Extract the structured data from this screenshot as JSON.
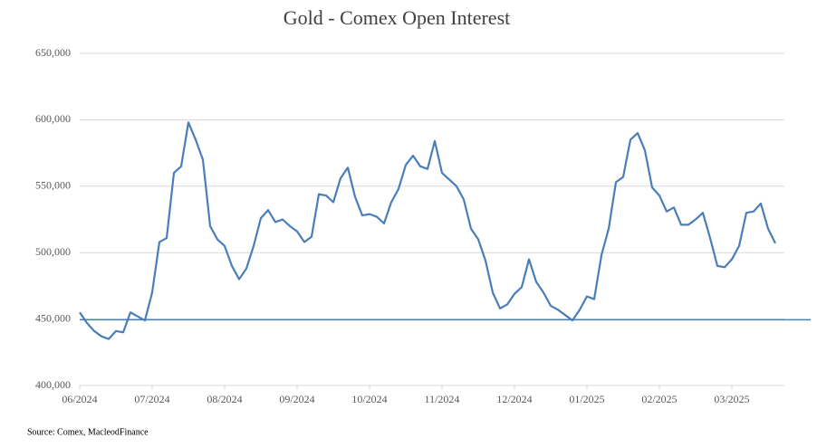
{
  "chart_data": {
    "type": "line",
    "title": "Gold - Comex Open Interest",
    "source": "Source: Comex,  MacleodFinance",
    "categories": [
      "06/2024",
      null,
      null,
      null,
      null,
      null,
      null,
      null,
      null,
      null,
      "07/2024",
      null,
      null,
      null,
      null,
      null,
      null,
      null,
      null,
      null,
      "08/2024",
      null,
      null,
      null,
      null,
      null,
      null,
      null,
      null,
      null,
      "09/2024",
      null,
      null,
      null,
      null,
      null,
      null,
      null,
      null,
      null,
      "10/2024",
      null,
      null,
      null,
      null,
      null,
      null,
      null,
      null,
      null,
      "11/2024",
      null,
      null,
      null,
      null,
      null,
      null,
      null,
      null,
      null,
      "12/2024",
      null,
      null,
      null,
      null,
      null,
      null,
      null,
      null,
      null,
      "01/2025",
      null,
      null,
      null,
      null,
      null,
      null,
      null,
      null,
      null,
      "02/2025",
      null,
      null,
      null,
      null,
      null,
      null,
      null,
      null,
      null,
      "03/2025",
      null,
      null,
      null,
      null,
      null,
      null
    ],
    "values": [
      455000,
      447000,
      441000,
      437000,
      435000,
      441000,
      440000,
      455000,
      452000,
      449000,
      470000,
      508000,
      511000,
      560000,
      565000,
      598000,
      585000,
      570000,
      520000,
      510000,
      505000,
      490000,
      480000,
      488000,
      505000,
      526000,
      532000,
      523000,
      525000,
      520000,
      516000,
      508000,
      512000,
      544000,
      543000,
      538000,
      556000,
      564000,
      542000,
      528000,
      529000,
      527000,
      522000,
      538000,
      548000,
      566000,
      573000,
      565000,
      563000,
      584000,
      560000,
      555000,
      550000,
      540000,
      518000,
      510000,
      494000,
      470000,
      458000,
      461000,
      469000,
      474000,
      495000,
      478000,
      470000,
      460000,
      457000,
      453000,
      449000,
      457000,
      467000,
      465000,
      498000,
      518000,
      553000,
      557000,
      585000,
      590000,
      577000,
      549000,
      543000,
      531000,
      534000,
      521000,
      521000,
      525000,
      530000,
      511000,
      490000,
      489000,
      495000,
      505000,
      530000,
      531000,
      537000,
      518000,
      507000
    ],
    "color": "#4a7ebb",
    "reference_line": 449500,
    "reference_color": "#4a7ebb",
    "ylim": [
      400000,
      650000
    ],
    "yticks": [
      {
        "value": 400000,
        "label": "400,000"
      },
      {
        "value": 450000,
        "label": "450,000"
      },
      {
        "value": 500000,
        "label": "500,000"
      },
      {
        "value": 550000,
        "label": "550,000"
      },
      {
        "value": 600000,
        "label": "600,000"
      },
      {
        "value": 650000,
        "label": "650,000"
      }
    ],
    "grid": true
  }
}
